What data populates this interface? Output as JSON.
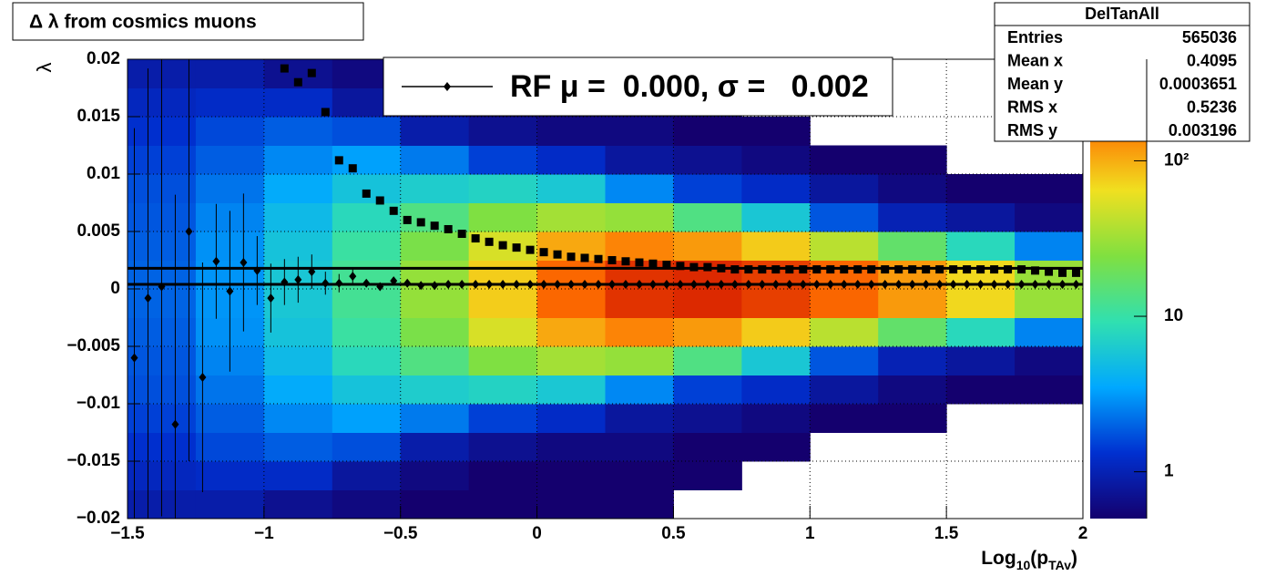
{
  "chart_data": {
    "type": "heatmap",
    "title": "Δ λ from cosmics muons",
    "y_label": "λ",
    "x_label": [
      "Log",
      "10",
      "(p",
      "TAv",
      ")"
    ],
    "xlim": [
      -1.5,
      2
    ],
    "ylim": [
      -0.02,
      0.02
    ],
    "xticks": [
      {
        "value": -1.5,
        "label": "−1.5"
      },
      {
        "value": -1,
        "label": "−1"
      },
      {
        "value": -0.5,
        "label": "−0.5"
      },
      0,
      0.5,
      1,
      1.5,
      2
    ],
    "yticks": [
      {
        "value": -0.02,
        "label": "−0.02"
      },
      {
        "value": -0.015,
        "label": "−0.015"
      },
      {
        "value": -0.01,
        "label": "−0.01"
      },
      {
        "value": -0.005,
        "label": "−0.005"
      },
      0,
      0.005,
      0.01,
      0.015,
      0.02
    ],
    "grid": true,
    "zlim": [
      0.5,
      450
    ],
    "zscale": "log",
    "zticks": [
      1,
      10,
      {
        "value": 100,
        "label": "10²"
      }
    ],
    "colormap": [
      "#14006e",
      "#0030d0",
      "#00a8ff",
      "#30e0b0",
      "#80e040",
      "#f0e020",
      "#ff7000",
      "#d01000"
    ],
    "heatmap": {
      "xbins": [
        -1.5,
        -1.25,
        -1,
        -0.75,
        -0.5,
        -0.25,
        0,
        0.25,
        0.5,
        0.75,
        1,
        1.25,
        1.5,
        1.75,
        2
      ],
      "ybins": [
        -0.02,
        -0.0175,
        -0.015,
        -0.0125,
        -0.01,
        -0.0075,
        -0.005,
        -0.0025,
        0,
        0.0025,
        0.005,
        0.0075,
        0.01,
        0.0125,
        0.015,
        0.0175,
        0.02
      ],
      "z": [
        [
          0.9,
          0.9,
          0.7,
          0.6,
          0.5,
          0.5,
          0.5,
          0.5,
          0,
          0,
          0,
          0,
          0,
          0
        ],
        [
          1.1,
          1.2,
          1.2,
          0.8,
          0.6,
          0.5,
          0.5,
          0.5,
          0.5,
          0,
          0,
          0,
          0,
          0
        ],
        [
          1.3,
          1.6,
          1.9,
          1.7,
          0.9,
          0.7,
          0.6,
          0.6,
          0.5,
          0.5,
          0,
          0,
          0,
          0
        ],
        [
          1.5,
          1.9,
          2.7,
          3.3,
          2.4,
          1.5,
          1.2,
          0.8,
          0.7,
          0.6,
          0.5,
          0.5,
          0,
          0
        ],
        [
          1.7,
          2.3,
          3.7,
          5.5,
          6.5,
          7.3,
          6,
          2.7,
          1.5,
          1.2,
          0.8,
          0.6,
          0.5,
          0.5
        ],
        [
          1.8,
          2.6,
          4.7,
          8.1,
          13.7,
          24,
          33,
          29,
          13.6,
          5.9,
          1.8,
          1,
          0.8,
          0.6
        ],
        [
          1.9,
          2.9,
          5.5,
          10.4,
          22.6,
          52,
          105,
          143,
          118,
          77,
          40,
          17,
          8,
          2.6
        ],
        [
          2,
          3,
          5.9,
          11.8,
          29,
          76,
          186,
          317,
          349,
          281,
          189,
          118,
          69,
          30
        ],
        [
          2,
          3,
          5.9,
          11.8,
          29,
          76,
          186,
          317,
          349,
          281,
          189,
          118,
          69,
          30
        ],
        [
          1.9,
          2.9,
          5.5,
          10.4,
          22.6,
          52,
          105,
          143,
          118,
          77,
          40,
          17,
          8,
          2.6
        ],
        [
          1.8,
          2.6,
          4.7,
          8.1,
          13.7,
          24,
          33,
          29,
          13.6,
          5.9,
          1.8,
          1,
          0.8,
          0.6
        ],
        [
          1.7,
          2.3,
          3.7,
          5.5,
          6.5,
          7.3,
          6,
          2.7,
          1.5,
          1.2,
          0.8,
          0.6,
          0.5,
          0.5
        ],
        [
          1.5,
          1.9,
          2.7,
          3.3,
          2.4,
          1.5,
          1.2,
          0.8,
          0.7,
          0.6,
          0.5,
          0.5,
          0,
          0
        ],
        [
          1.3,
          1.6,
          1.9,
          1.7,
          0.9,
          0.7,
          0.6,
          0.6,
          0.5,
          0.5,
          0,
          0,
          0,
          0
        ],
        [
          1.1,
          1.2,
          1.2,
          0.8,
          0.6,
          0.5,
          0.5,
          0.5,
          0.5,
          0,
          0,
          0,
          0,
          0
        ],
        [
          0.9,
          0.9,
          0.7,
          0.6,
          0.5,
          0.5,
          0.5,
          0.5,
          0,
          0,
          0,
          0,
          0,
          0
        ]
      ]
    },
    "x": [
      -1.475,
      -1.425,
      -1.375,
      -1.325,
      -1.275,
      -1.225,
      -1.175,
      -1.125,
      -1.075,
      -1.025,
      -0.975,
      -0.925,
      -0.875,
      -0.825,
      -0.775,
      -0.725,
      -0.675,
      -0.625,
      -0.575,
      -0.525,
      -0.475,
      -0.425,
      -0.375,
      -0.325,
      -0.275,
      -0.225,
      -0.175,
      -0.125,
      -0.075,
      -0.025,
      0.025,
      0.075,
      0.125,
      0.175,
      0.225,
      0.275,
      0.325,
      0.375,
      0.425,
      0.475,
      0.525,
      0.575,
      0.625,
      0.675,
      0.725,
      0.775,
      0.825,
      0.875,
      0.925,
      0.975,
      1.025,
      1.075,
      1.125,
      1.175,
      1.225,
      1.275,
      1.325,
      1.375,
      1.425,
      1.475,
      1.525,
      1.575,
      1.625,
      1.675,
      1.725,
      1.775,
      1.825,
      1.875,
      1.925,
      1.975
    ],
    "series": [
      {
        "name": "RF μ =  0.000, σ =   0.002",
        "marker": "diamond",
        "color": "#000000",
        "values": [
          -0.006,
          -0.0008,
          0.0002,
          -0.0118,
          0.005,
          -0.0077,
          0.0024,
          -0.0002,
          0.0023,
          0.0016,
          -0.0008,
          0.0006,
          0.0008,
          0.0015,
          0.0005,
          0.0005,
          0.0011,
          0.0005,
          0.0002,
          0.0007,
          0.0005,
          0.0003,
          0.0003,
          0.0004,
          0.0004,
          0.0004,
          0.0004,
          0.0004,
          0.0004,
          0.0004,
          0.0004,
          0.0004,
          0.0004,
          0.0004,
          0.0004,
          0.0004,
          0.0004,
          0.0004,
          0.0004,
          0.0004,
          0.0004,
          0.0004,
          0.0004,
          0.0004,
          0.0004,
          0.0004,
          0.0004,
          0.0004,
          0.0004,
          0.0004,
          0.0004,
          0.0004,
          0.0004,
          0.0004,
          0.0004,
          0.0004,
          0.0004,
          0.0004,
          0.0004,
          0.0004,
          0.0004,
          0.0004,
          0.0004,
          0.0004,
          0.0004,
          0.0004,
          0.0004,
          0.0004,
          0.0004,
          0.0004
        ],
        "errors": [
          0.02,
          0.02,
          0.02,
          0.02,
          0.02,
          0.01,
          0.005,
          0.007,
          0.006,
          0.003,
          0.003,
          0.002,
          0.002,
          0.0015,
          0.001,
          0.0008,
          0.0006,
          0.0003,
          0.0003,
          0.0003,
          0.0003,
          0.0003,
          0.0002,
          0.0002,
          0.0002,
          0.0002,
          0.0002,
          0.0002,
          0.0002,
          0.0002,
          0.0002,
          0.0002,
          0.0002,
          0.0002,
          0.0002,
          0.0002,
          0.0002,
          0.0002,
          0.0002,
          0.0002,
          0.0002,
          0.0002,
          0.0002,
          0.0002,
          0.0002,
          0.0002,
          0.0002,
          0.0002,
          0.0002,
          0.0002,
          0.0002,
          0.0002,
          0.0002,
          0.0002,
          0.0002,
          0.0002,
          0.0002,
          0.0002,
          0.0002,
          0.0002,
          0.0002,
          0.0002,
          0.0002,
          0.0002,
          0.0002,
          0.0002,
          0.0002,
          0.0002,
          0.0002,
          0.0002
        ]
      },
      {
        "marker": "square",
        "color": "#000000",
        "values": [
          null,
          null,
          null,
          null,
          null,
          null,
          null,
          null,
          null,
          null,
          null,
          0.0192,
          0.018,
          0.0188,
          0.0154,
          0.0112,
          0.0105,
          0.0083,
          0.0077,
          0.0068,
          0.006,
          0.0058,
          0.0055,
          0.0052,
          0.0048,
          0.0044,
          0.0041,
          0.0038,
          0.0036,
          0.0034,
          0.0032,
          0.003,
          0.0028,
          0.0027,
          0.0026,
          0.0025,
          0.0024,
          0.0023,
          0.0022,
          0.0021,
          0.002,
          0.0019,
          0.0019,
          0.0018,
          0.0017,
          0.0017,
          0.0017,
          0.0017,
          0.0017,
          0.0017,
          0.0017,
          0.0017,
          0.0017,
          0.0017,
          0.0017,
          0.0017,
          0.0017,
          0.0017,
          0.0017,
          0.0017,
          0.0017,
          0.0017,
          0.0017,
          0.0017,
          0.0017,
          0.0017,
          0.0016,
          0.0015,
          0.0014,
          0.0014
        ]
      }
    ],
    "fit_lines": [
      0.0018,
      0.0004
    ],
    "stats_box": {
      "title": "DelTanAll",
      "rows": [
        [
          "Entries",
          "565036"
        ],
        [
          "Mean x",
          "0.4095"
        ],
        [
          "Mean y",
          "0.0003651"
        ],
        [
          "RMS x",
          "0.5236"
        ],
        [
          "RMS y",
          "0.003196"
        ]
      ]
    }
  }
}
